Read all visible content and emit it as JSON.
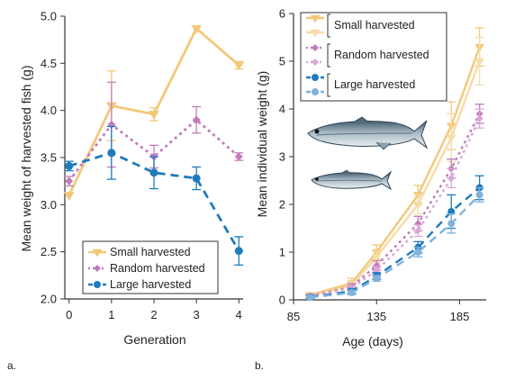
{
  "panel_labels": {
    "a": "a.",
    "b": "b."
  },
  "colors": {
    "small": "#f2c879",
    "small_light": "#f7dca8",
    "random": "#c27bbb",
    "random_light": "#d9a6d4",
    "large": "#1f7bbd",
    "large_light": "#7fb3da",
    "axis": "#333333"
  },
  "icons": [
    "fish-icon-large",
    "fish-icon-small"
  ],
  "chart_data": [
    {
      "type": "line",
      "xlabel": "Generation",
      "ylabel": "Mean weight of harvested fish (g)",
      "x": [
        0,
        1,
        2,
        3,
        4
      ],
      "xlim": [
        -0.1,
        4.1
      ],
      "ylim": [
        2.0,
        5.0
      ],
      "x_ticks": [
        "0",
        "1",
        "2",
        "3",
        "4"
      ],
      "y_ticks": [
        "2.0",
        "2.5",
        "3.0",
        "3.5",
        "4.0",
        "4.5",
        "5.0"
      ],
      "legend_position": "bottom-right",
      "series": [
        {
          "name": "Small harvested",
          "values": [
            3.1,
            4.05,
            3.96,
            4.87,
            4.48
          ],
          "error": [
            0.0,
            0.37,
            0.07,
            0.0,
            0.04
          ]
        },
        {
          "name": "Random harvested",
          "values": [
            3.25,
            3.85,
            3.51,
            3.9,
            3.51
          ],
          "error": [
            0.05,
            0.45,
            0.12,
            0.14,
            0.04
          ]
        },
        {
          "name": "Large harvested",
          "values": [
            3.41,
            3.55,
            3.34,
            3.28,
            2.51
          ],
          "error": [
            0.05,
            0.28,
            0.17,
            0.12,
            0.15
          ]
        }
      ]
    },
    {
      "type": "line",
      "xlabel": "Age (days)",
      "ylabel": "Mean individual weight (g)",
      "xlim": [
        85,
        201
      ],
      "ylim": [
        0,
        6
      ],
      "x_ticks": [
        "85",
        "135",
        "185"
      ],
      "y_ticks": [
        "0",
        "1",
        "2",
        "3",
        "4",
        "5",
        "6"
      ],
      "legend_position": "top-left",
      "legend_labels": [
        "Small harvested",
        "Random harvested",
        "Large harvested"
      ],
      "series": [
        {
          "name": "Small harvested",
          "x": [
            95,
            120,
            135,
            160,
            180,
            197
          ],
          "values": [
            0.1,
            0.35,
            1.0,
            2.2,
            3.65,
            5.3
          ],
          "error": [
            0.05,
            0.1,
            0.15,
            0.2,
            0.5,
            0.4
          ]
        },
        {
          "name": "Small harvested",
          "x": [
            95,
            120,
            135,
            160,
            180,
            197
          ],
          "values": [
            0.08,
            0.3,
            0.9,
            2.0,
            3.4,
            5.0
          ],
          "error": [
            0.04,
            0.08,
            0.12,
            0.2,
            0.5,
            0.5
          ],
          "replicate": true
        },
        {
          "name": "Random harvested",
          "x": [
            95,
            120,
            135,
            160,
            180,
            197
          ],
          "values": [
            0.08,
            0.28,
            0.72,
            1.6,
            2.75,
            3.9
          ],
          "error": [
            0.04,
            0.06,
            0.1,
            0.15,
            0.2,
            0.2
          ]
        },
        {
          "name": "Random harvested",
          "x": [
            95,
            120,
            135,
            160,
            180,
            197
          ],
          "values": [
            0.07,
            0.25,
            0.62,
            1.45,
            2.55,
            3.8
          ],
          "error": [
            0.03,
            0.05,
            0.08,
            0.12,
            0.2,
            0.2
          ],
          "replicate": true
        },
        {
          "name": "Large harvested",
          "x": [
            95,
            120,
            135,
            160,
            180,
            197
          ],
          "values": [
            0.06,
            0.18,
            0.5,
            1.1,
            1.85,
            2.35
          ],
          "error": [
            0.03,
            0.05,
            0.07,
            0.12,
            0.35,
            0.25
          ]
        },
        {
          "name": "Large harvested",
          "x": [
            95,
            120,
            135,
            160,
            180,
            197
          ],
          "values": [
            0.05,
            0.15,
            0.45,
            1.0,
            1.6,
            2.2
          ],
          "error": [
            0.03,
            0.04,
            0.06,
            0.1,
            0.2,
            0.15
          ],
          "replicate": true
        }
      ]
    }
  ]
}
